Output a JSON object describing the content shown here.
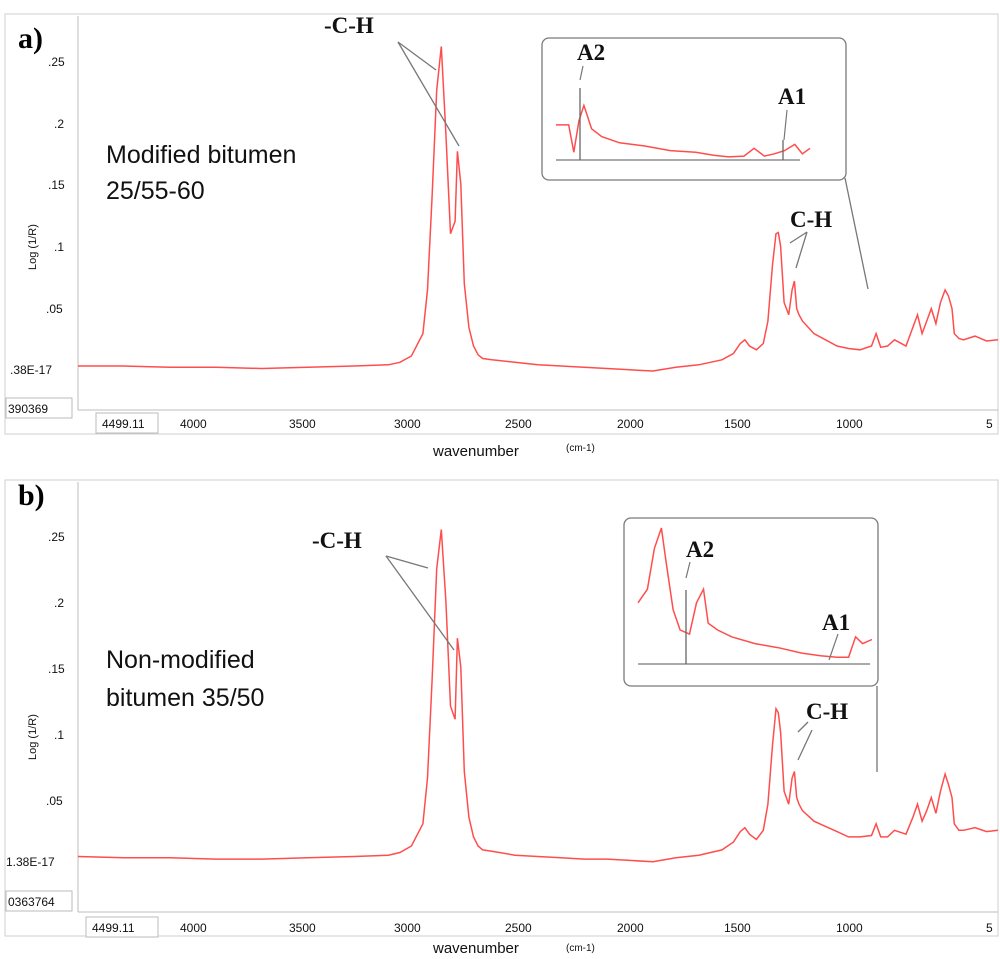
{
  "chart_data": [
    {
      "type": "line",
      "panel": "a)",
      "annotation": [
        "Modified bitumen",
        "25/55-60"
      ],
      "ylabel": "Log (1/R)",
      "xlabel": "wavenumber",
      "xunit": "(cm-1)",
      "xlim": [
        4499.11,
        500
      ],
      "ylim": [
        0.0,
        0.27
      ],
      "x_ticks": [
        "4000",
        "3500",
        "3000",
        "2500",
        "2000",
        "1500",
        "1000",
        "5"
      ],
      "x_start_box": "4499.11",
      "y_ticks": [
        ".25",
        ".2",
        ".15",
        ".1",
        ".05"
      ],
      "y_bottom_tick": ".38E-17",
      "y_min_box": "390369",
      "series": [
        {
          "color": "#ff4d4d",
          "x": [
            4499,
            4300,
            4100,
            3900,
            3700,
            3500,
            3300,
            3150,
            3100,
            3050,
            3000,
            2980,
            2960,
            2940,
            2920,
            2900,
            2880,
            2860,
            2850,
            2835,
            2820,
            2800,
            2780,
            2760,
            2740,
            2700,
            2600,
            2500,
            2400,
            2300,
            2200,
            2100,
            2000,
            1900,
            1800,
            1700,
            1650,
            1620,
            1600,
            1580,
            1550,
            1520,
            1500,
            1480,
            1465,
            1455,
            1445,
            1430,
            1410,
            1395,
            1385,
            1375,
            1365,
            1350,
            1300,
            1250,
            1200,
            1150,
            1100,
            1050,
            1030,
            1010,
            980,
            950,
            900,
            870,
            850,
            830,
            810,
            790,
            770,
            750,
            730,
            715,
            700,
            690,
            670,
            650,
            600,
            550,
            500
          ],
          "y": [
            0.004,
            0.004,
            0.003,
            0.003,
            0.002,
            0.003,
            0.004,
            0.005,
            0.007,
            0.012,
            0.03,
            0.065,
            0.14,
            0.225,
            0.26,
            0.19,
            0.11,
            0.12,
            0.176,
            0.15,
            0.07,
            0.035,
            0.02,
            0.013,
            0.01,
            0.009,
            0.007,
            0.005,
            0.004,
            0.003,
            0.002,
            0.001,
            0.0,
            0.003,
            0.005,
            0.009,
            0.014,
            0.022,
            0.025,
            0.02,
            0.017,
            0.022,
            0.04,
            0.085,
            0.11,
            0.111,
            0.1,
            0.055,
            0.045,
            0.065,
            0.072,
            0.05,
            0.045,
            0.04,
            0.03,
            0.025,
            0.02,
            0.018,
            0.017,
            0.02,
            0.03,
            0.019,
            0.02,
            0.025,
            0.02,
            0.035,
            0.045,
            0.03,
            0.04,
            0.05,
            0.038,
            0.055,
            0.065,
            0.06,
            0.05,
            0.03,
            0.026,
            0.025,
            0.028,
            0.024,
            0.025
          ]
        }
      ],
      "peak_labels": [
        "-C-H",
        "C-H"
      ],
      "inset": {
        "labels": [
          "A2",
          "A1"
        ],
        "x": [
          0.0,
          0.05,
          0.07,
          0.09,
          0.11,
          0.14,
          0.18,
          0.25,
          0.35,
          0.45,
          0.55,
          0.62,
          0.68,
          0.74,
          0.78,
          0.82,
          0.86,
          0.9,
          0.94,
          0.97,
          1.0
        ],
        "y": [
          0.45,
          0.45,
          0.1,
          0.5,
          0.7,
          0.4,
          0.3,
          0.22,
          0.18,
          0.12,
          0.1,
          0.06,
          0.04,
          0.05,
          0.15,
          0.05,
          0.08,
          0.12,
          0.2,
          0.08,
          0.15
        ]
      }
    },
    {
      "type": "line",
      "panel": "b)",
      "annotation": [
        "Non-modified",
        "bitumen 35/50"
      ],
      "ylabel": "Log (1/R)",
      "xlabel": "wavenumber",
      "xunit": "(cm-1)",
      "xlim": [
        4499.11,
        500
      ],
      "ylim": [
        0.0,
        0.27
      ],
      "x_ticks": [
        "4000",
        "3500",
        "3000",
        "2500",
        "2000",
        "1500",
        "1000",
        "5"
      ],
      "x_start_box": "4499.11",
      "y_ticks": [
        ".25",
        ".2",
        ".15",
        ".1",
        ".05"
      ],
      "y_bottom_tick": "1.38E-17",
      "y_min_box": "0363764",
      "series": [
        {
          "color": "#ff4d4d",
          "x": [
            4499,
            4300,
            4100,
            3900,
            3700,
            3500,
            3300,
            3150,
            3100,
            3050,
            3000,
            2980,
            2960,
            2940,
            2920,
            2900,
            2880,
            2860,
            2850,
            2835,
            2820,
            2800,
            2780,
            2760,
            2740,
            2700,
            2600,
            2500,
            2400,
            2300,
            2200,
            2100,
            2000,
            1900,
            1800,
            1700,
            1650,
            1620,
            1600,
            1580,
            1550,
            1520,
            1500,
            1480,
            1465,
            1455,
            1445,
            1430,
            1410,
            1395,
            1385,
            1375,
            1365,
            1350,
            1300,
            1250,
            1200,
            1150,
            1100,
            1050,
            1030,
            1010,
            980,
            950,
            900,
            870,
            850,
            830,
            810,
            790,
            770,
            750,
            730,
            715,
            700,
            690,
            670,
            650,
            600,
            550,
            500
          ],
          "y": [
            0.005,
            0.004,
            0.004,
            0.003,
            0.003,
            0.004,
            0.005,
            0.006,
            0.008,
            0.013,
            0.03,
            0.065,
            0.14,
            0.225,
            0.255,
            0.2,
            0.12,
            0.11,
            0.172,
            0.15,
            0.07,
            0.035,
            0.02,
            0.013,
            0.01,
            0.009,
            0.006,
            0.005,
            0.004,
            0.003,
            0.003,
            0.002,
            0.001,
            0.004,
            0.006,
            0.01,
            0.016,
            0.024,
            0.027,
            0.022,
            0.018,
            0.025,
            0.045,
            0.09,
            0.118,
            0.115,
            0.1,
            0.055,
            0.045,
            0.065,
            0.07,
            0.05,
            0.045,
            0.04,
            0.032,
            0.028,
            0.024,
            0.02,
            0.02,
            0.021,
            0.03,
            0.02,
            0.02,
            0.025,
            0.022,
            0.035,
            0.045,
            0.032,
            0.04,
            0.05,
            0.038,
            0.055,
            0.068,
            0.06,
            0.05,
            0.03,
            0.025,
            0.025,
            0.027,
            0.024,
            0.025
          ]
        }
      ],
      "peak_labels": [
        "-C-H",
        "C-H"
      ],
      "inset": {
        "labels": [
          "A2",
          "A1"
        ],
        "x": [
          0.0,
          0.04,
          0.07,
          0.1,
          0.12,
          0.15,
          0.18,
          0.22,
          0.25,
          0.28,
          0.3,
          0.34,
          0.4,
          0.5,
          0.6,
          0.7,
          0.78,
          0.85,
          0.9,
          0.93,
          0.96,
          1.0
        ],
        "y": [
          0.45,
          0.55,
          0.85,
          1.0,
          0.75,
          0.4,
          0.25,
          0.22,
          0.45,
          0.55,
          0.3,
          0.25,
          0.2,
          0.15,
          0.12,
          0.08,
          0.06,
          0.05,
          0.05,
          0.2,
          0.15,
          0.18
        ]
      }
    }
  ]
}
